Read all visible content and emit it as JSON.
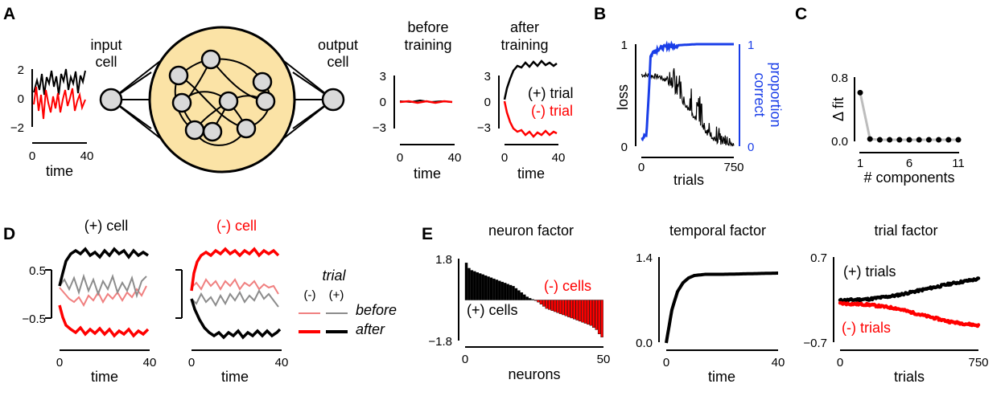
{
  "panels": {
    "A": {
      "letter": "A",
      "input_label": [
        "input",
        "cell"
      ],
      "output_label": [
        "output",
        "cell"
      ],
      "input_axis": {
        "yticks": [
          "2",
          "0",
          "−2"
        ],
        "xticks": [
          "0",
          "40"
        ],
        "xlabel": "time"
      },
      "before": {
        "title": [
          "before",
          "training"
        ],
        "yticks": [
          "3",
          "0",
          "−3"
        ],
        "xticks": [
          "0",
          "40"
        ],
        "xlabel": "time"
      },
      "after": {
        "title": [
          "after",
          "training"
        ],
        "yticks": [
          "3",
          "0",
          "−3"
        ],
        "xticks": [
          "0",
          "40"
        ],
        "xlabel": "time"
      },
      "trial_pos_label": "(+) trial",
      "trial_neg_label": "(-) trial"
    },
    "B": {
      "letter": "B",
      "ylabel_left": "loss",
      "ylabel_right": [
        "proportion",
        "correct"
      ],
      "yticks_left": [
        "1",
        "0"
      ],
      "yticks_right": [
        "1",
        "0"
      ],
      "xticks": [
        "0",
        "750"
      ],
      "xlabel": "trials"
    },
    "C": {
      "letter": "C",
      "ylabel": "Δ fit",
      "yticks": [
        "0.8",
        "0.0"
      ],
      "xticks": [
        "1",
        "6",
        "11"
      ],
      "xlabel": "# components"
    },
    "D": {
      "letter": "D",
      "pos_cell_title": "(+) cell",
      "neg_cell_title": "(-) cell",
      "yticks": [
        "0.5",
        "−0.5"
      ],
      "xticks": [
        "0",
        "40"
      ],
      "xlabel": "time",
      "legend": {
        "title": "trial",
        "neg": "(-)",
        "pos": "(+)",
        "before": "before",
        "after": "after"
      }
    },
    "E": {
      "letter": "E",
      "neuron": {
        "title": "neuron factor",
        "yticks": [
          "1.8",
          "−1.8"
        ],
        "xticks": [
          "0",
          "50"
        ],
        "xlabel": "neurons",
        "pos_label": "(+) cells",
        "neg_label": "(-) cells"
      },
      "temporal": {
        "title": "temporal factor",
        "yticks": [
          "1.4",
          "0.0"
        ],
        "xticks": [
          "0",
          "40"
        ],
        "xlabel": "time"
      },
      "trial": {
        "title": "trial factor",
        "yticks": [
          "0.7",
          "−0.7"
        ],
        "xticks": [
          "0",
          "750"
        ],
        "xlabel": "trials",
        "pos_label": "(+) trials",
        "neg_label": "(-) trials"
      }
    }
  },
  "colors": {
    "black": "#000000",
    "red": "#ff0000",
    "blue": "#1a3ee8",
    "light_red": "#f08080",
    "gray": "#8c8c8c",
    "cell_fill": "#d9d9d9",
    "network_fill": "#fbe3a6"
  },
  "chart_data": [
    {
      "type": "line",
      "panel": "B",
      "title": "",
      "xlabel": "trials",
      "ylabel": "loss",
      "xlim": [
        0,
        750
      ],
      "ylim": [
        0,
        1
      ],
      "series": [
        {
          "name": "loss",
          "x": [
            0,
            75,
            150,
            225,
            300,
            375,
            450,
            525,
            600,
            675,
            750
          ],
          "values": [
            0.7,
            0.69,
            0.68,
            0.62,
            0.5,
            0.38,
            0.25,
            0.14,
            0.06,
            0.02,
            0.01
          ]
        },
        {
          "name": "proportion correct",
          "x": [
            0,
            40,
            60,
            75,
            100,
            150,
            225,
            300,
            450,
            600,
            750
          ],
          "values": [
            0.08,
            0.1,
            0.5,
            0.88,
            0.93,
            0.96,
            0.98,
            0.99,
            1.0,
            1.0,
            1.0
          ]
        }
      ]
    },
    {
      "type": "line",
      "panel": "C",
      "title": "",
      "xlabel": "# components",
      "ylabel": "Δ fit",
      "ylim": [
        0,
        0.8
      ],
      "x": [
        1,
        2,
        3,
        4,
        5,
        6,
        7,
        8,
        9,
        10,
        11
      ],
      "values": [
        0.62,
        0.02,
        0.01,
        0.01,
        0.01,
        0.01,
        0.01,
        0.01,
        0.01,
        0.01,
        0.01
      ]
    },
    {
      "type": "bar",
      "panel": "E",
      "title": "neuron factor",
      "xlabel": "neurons",
      "ylim": [
        -1.8,
        1.8
      ],
      "values": [
        1.75,
        1.5,
        1.4,
        1.35,
        1.3,
        1.25,
        1.2,
        1.15,
        1.1,
        1.05,
        1.0,
        0.95,
        0.9,
        0.85,
        0.8,
        0.75,
        0.7,
        0.65,
        0.55,
        0.45,
        0.35,
        0.25,
        0.15,
        0.08,
        0.03,
        -0.02,
        -0.1,
        -0.2,
        -0.3,
        -0.4,
        -0.45,
        -0.5,
        -0.55,
        -0.6,
        -0.65,
        -0.7,
        -0.75,
        -0.8,
        -0.85,
        -0.9,
        -0.95,
        -1.0,
        -1.05,
        -1.1,
        -1.15,
        -1.2,
        -1.3,
        -1.4,
        -1.6,
        -1.75
      ]
    },
    {
      "type": "line",
      "panel": "E",
      "title": "temporal factor",
      "xlabel": "time",
      "ylim": [
        0,
        1.4
      ],
      "x": [
        0,
        2,
        4,
        6,
        8,
        10,
        14,
        20,
        30,
        40
      ],
      "values": [
        0.0,
        0.55,
        0.85,
        1.0,
        1.08,
        1.12,
        1.14,
        1.14,
        1.15,
        1.16
      ]
    },
    {
      "type": "scatter",
      "panel": "E",
      "title": "trial factor",
      "xlabel": "trials",
      "ylim": [
        -0.7,
        0.7
      ],
      "series": [
        {
          "name": "(+) trials",
          "x": [
            0,
            150,
            300,
            450,
            600,
            750
          ],
          "values": [
            0.0,
            0.02,
            0.08,
            0.18,
            0.28,
            0.36
          ]
        },
        {
          "name": "(-) trials",
          "x": [
            0,
            150,
            300,
            450,
            600,
            750
          ],
          "values": [
            -0.05,
            -0.07,
            -0.13,
            -0.25,
            -0.36,
            -0.42
          ]
        }
      ]
    }
  ]
}
